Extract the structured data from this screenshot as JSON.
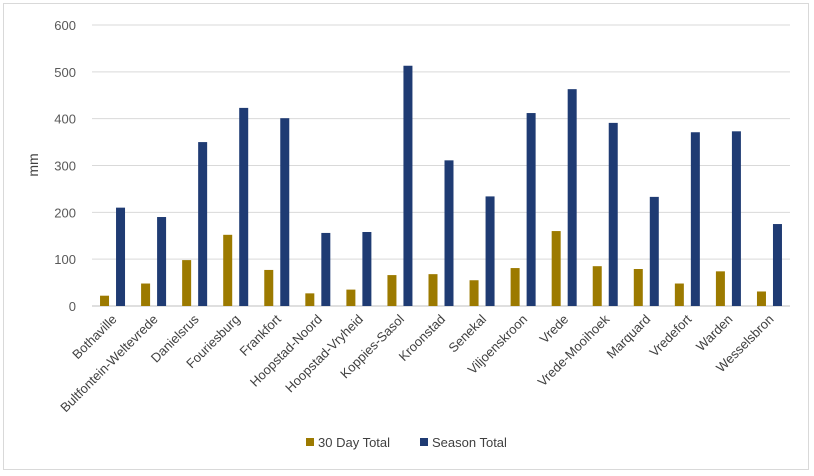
{
  "chart_data": {
    "type": "bar",
    "ylabel": "mm",
    "xlabel": "",
    "title": "",
    "ylim": [
      0,
      600
    ],
    "yticks": [
      0,
      100,
      200,
      300,
      400,
      500,
      600
    ],
    "grid": true,
    "legend_position": "bottom",
    "categories": [
      "Bothaville",
      "Bultfontein-Weltevrede",
      "Danielsrus",
      "Fouriesburg",
      "Frankfort",
      "Hoopstad-Noord",
      "Hoopstad-Vryheid",
      "Koppies-Sasol",
      "Kroonstad",
      "Senekal",
      "Viljoenskroon",
      "Vrede",
      "Vrede-Mooihoek",
      "Marquard",
      "Vredefort",
      "Warden",
      "Wesselsbron"
    ],
    "series": [
      {
        "name": "30 Day Total",
        "color": "#9c7a00",
        "values": [
          22,
          48,
          98,
          152,
          77,
          27,
          35,
          66,
          68,
          55,
          81,
          160,
          85,
          79,
          48,
          74,
          31
        ]
      },
      {
        "name": "Season Total",
        "color": "#1f3b73",
        "values": [
          210,
          190,
          350,
          423,
          401,
          156,
          158,
          513,
          311,
          234,
          412,
          463,
          391,
          233,
          371,
          373,
          175
        ]
      }
    ]
  }
}
